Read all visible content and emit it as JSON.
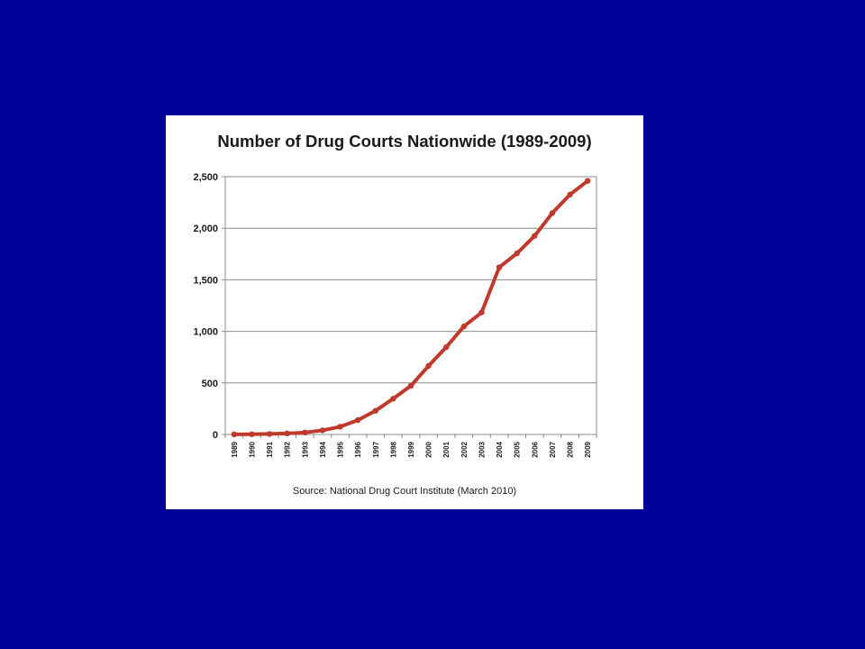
{
  "chart_data": {
    "type": "line",
    "title": "Number of Drug Courts Nationwide (1989-2009)",
    "source": "Source: National Drug Court Institute (March 2010)",
    "x": [
      "1989",
      "1990",
      "1991",
      "1992",
      "1993",
      "1994",
      "1995",
      "1996",
      "1997",
      "1998",
      "1999",
      "2000",
      "2001",
      "2002",
      "2003",
      "2004",
      "2005",
      "2006",
      "2007",
      "2008",
      "2009"
    ],
    "series": [
      {
        "values": [
          1,
          2,
          5,
          10,
          19,
          40,
          75,
          139,
          230,
          347,
          472,
          665,
          847,
          1048,
          1183,
          1621,
          1756,
          1926,
          2147,
          2326,
          2459
        ]
      }
    ],
    "yticks": [
      {
        "value": 0,
        "label": "0"
      },
      {
        "value": 500,
        "label": "500"
      },
      {
        "value": 1000,
        "label": "1,000"
      },
      {
        "value": 1500,
        "label": "1,500"
      },
      {
        "value": 2000,
        "label": "2,000"
      },
      {
        "value": 2500,
        "label": "2,500"
      }
    ],
    "ylim": [
      0,
      2500
    ],
    "grid": true,
    "line_color": "#c0392b",
    "background_color": "#000099"
  }
}
